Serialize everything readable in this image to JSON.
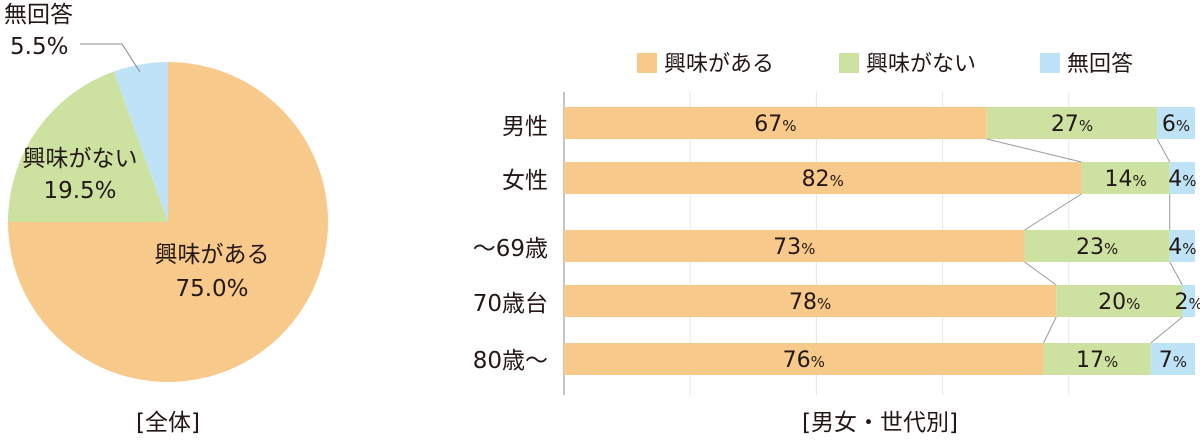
{
  "chart_data": [
    {
      "type": "pie",
      "caption": "[全体]",
      "slices": [
        {
          "name": "興味がある",
          "value": 75.0,
          "label": "75.0%",
          "color": "#f7c98a"
        },
        {
          "name": "興味がない",
          "value": 19.5,
          "label": "19.5%",
          "color": "#cde2a0"
        },
        {
          "name": "無回答",
          "value": 5.5,
          "label": "5.5%",
          "color": "#bfe3f6"
        }
      ]
    },
    {
      "type": "bar",
      "orientation": "horizontal",
      "stacked": true,
      "caption": "[男女・世代別]",
      "legend_position": "top",
      "categories": [
        "男性",
        "女性",
        "～69歳",
        "70歳台",
        "80歳～"
      ],
      "series": [
        {
          "name": "興味がある",
          "color": "#f7c98a",
          "values": [
            67,
            82,
            73,
            78,
            76
          ]
        },
        {
          "name": "興味がない",
          "color": "#cde2a0",
          "values": [
            27,
            14,
            23,
            20,
            17
          ]
        },
        {
          "name": "無回答",
          "color": "#bfe3f6",
          "values": [
            6,
            4,
            4,
            2,
            7
          ]
        }
      ],
      "unit": "%",
      "xlim": [
        0,
        100
      ]
    }
  ]
}
